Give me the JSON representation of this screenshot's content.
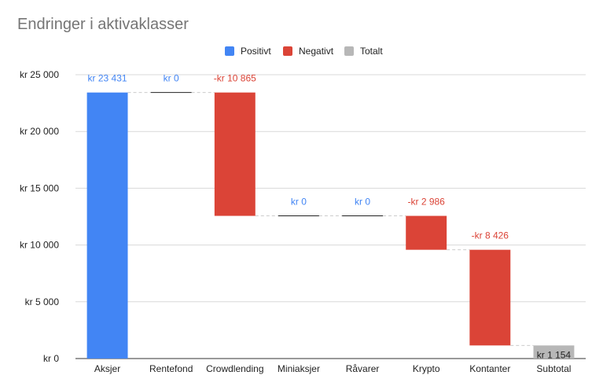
{
  "chart_data": {
    "type": "waterfall",
    "title": "Endringer i aktivaklasser",
    "legend": {
      "placement": "top-center",
      "entries": [
        {
          "label": "Positivt",
          "color": "#4285f4"
        },
        {
          "label": "Negativt",
          "color": "#db4437"
        },
        {
          "label": "Totalt",
          "color": "#b7b7b7"
        }
      ]
    },
    "colors": {
      "positive": "#4285f4",
      "negative": "#db4437",
      "total": "#b7b7b7",
      "grid": "#d9d9d9",
      "axis_text": "#222222",
      "connector": "#cccccc"
    },
    "categories": [
      "Aksjer",
      "Rentefond",
      "Crowdlending",
      "Miniaksjer",
      "Råvarer",
      "Krypto",
      "Kontanter",
      "Subtotal"
    ],
    "values": [
      23431,
      0,
      -10865,
      0,
      0,
      -2986,
      -8426,
      1154
    ],
    "kinds": [
      "positive",
      "positive",
      "negative",
      "positive",
      "positive",
      "negative",
      "negative",
      "total"
    ],
    "data_labels": [
      "kr  23 431",
      "kr  0",
      "-kr  10 865",
      "kr  0",
      "kr  0",
      "-kr  2 986",
      "-kr  8 426",
      "kr  1 154"
    ],
    "y_ticks": [
      {
        "value": 0,
        "label": "kr   0"
      },
      {
        "value": 5000,
        "label": "kr   5 000"
      },
      {
        "value": 10000,
        "label": "kr   10 000"
      },
      {
        "value": 15000,
        "label": "kr   15 000"
      },
      {
        "value": 20000,
        "label": "kr   20 000"
      },
      {
        "value": 25000,
        "label": "kr   25 000"
      }
    ],
    "ylim": [
      0,
      25000
    ],
    "grid": true
  }
}
